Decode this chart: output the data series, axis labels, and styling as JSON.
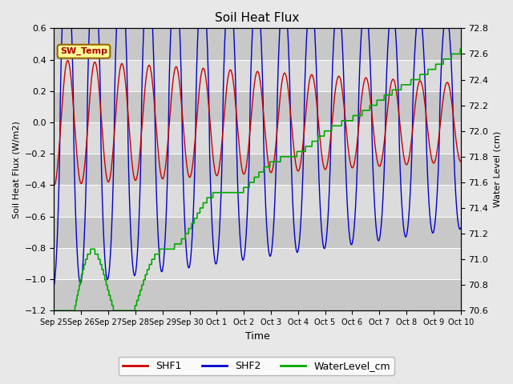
{
  "title": "Soil Heat Flux",
  "ylabel_left": "Soil Heat Flux (W/m2)",
  "ylabel_right": "Water Level (cm)",
  "xlabel": "Time",
  "ylim_left": [
    -1.2,
    0.6
  ],
  "ylim_right": [
    70.6,
    72.8
  ],
  "yticks_left": [
    -1.2,
    -1.0,
    -0.8,
    -0.6,
    -0.4,
    -0.2,
    0.0,
    0.2,
    0.4,
    0.6
  ],
  "yticks_right": [
    70.6,
    70.8,
    71.0,
    71.2,
    71.4,
    71.6,
    71.8,
    72.0,
    72.2,
    72.4,
    72.6,
    72.8
  ],
  "shf1_color": "#cc0000",
  "shf2_color": "#0000cc",
  "water_color": "#00aa00",
  "bg_color": "#e8e8e8",
  "band_light": "#dcdcdc",
  "band_dark": "#c8c8c8",
  "annotation_text": "SW_Temp",
  "annotation_facecolor": "#ffff99",
  "annotation_edgecolor": "#996600",
  "annotation_textcolor": "#aa0000",
  "tick_labels": [
    "Sep 25",
    "Sep 26",
    "Sep 27",
    "Sep 28",
    "Sep 29",
    "Sep 30",
    "Oct 1",
    "Oct 2",
    "Oct 3",
    "Oct 4",
    "Oct 5",
    "Oct 6",
    "Oct 7",
    "Oct 8",
    "Oct 9",
    "Oct 10"
  ],
  "tick_positions": [
    0,
    1,
    2,
    3,
    4,
    5,
    6,
    7,
    8,
    9,
    10,
    11,
    12,
    13,
    14,
    15
  ]
}
